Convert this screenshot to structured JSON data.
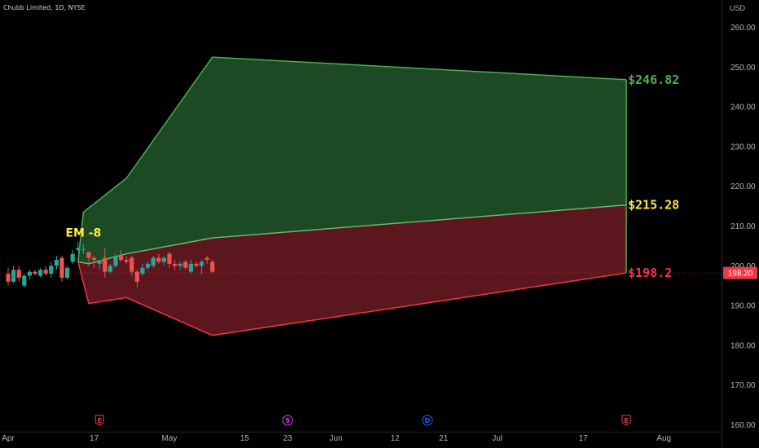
{
  "header": {
    "symbol_title": "Chubb Limited, 1D, NYSE",
    "currency": "USD"
  },
  "colors": {
    "background": "#000000",
    "up": "#26a69a",
    "down": "#ef5350",
    "upper_band_fill": "#1b4a24",
    "upper_band_stroke": "#4caf50",
    "lower_band_fill": "#5c161d",
    "lower_band_stroke": "#f23645",
    "mid_line": "#66bb6a",
    "label_green": "#4caf50",
    "label_yellow": "#ffeb3b",
    "label_red": "#f23645",
    "price_tag": "#f23645",
    "event_earnings": "#f23645",
    "event_split": "#e040fb",
    "event_dividend": "#2962ff"
  },
  "chart_data": {
    "type": "candlestick",
    "y_axis": {
      "min": 160,
      "max": 260,
      "ticks": [
        "160.00",
        "170.00",
        "180.00",
        "190.00",
        "200.00",
        "210.00",
        "220.00",
        "230.00",
        "240.00",
        "250.00",
        "260.00"
      ]
    },
    "x_axis": {
      "ticks": [
        {
          "label": "Apr",
          "day": 0
        },
        {
          "label": "17",
          "day": 16
        },
        {
          "label": "May",
          "day": 30
        },
        {
          "label": "15",
          "day": 44
        },
        {
          "label": "23",
          "day": 52
        },
        {
          "label": "Jun",
          "day": 61
        },
        {
          "label": "12",
          "day": 72
        },
        {
          "label": "21",
          "day": 81
        },
        {
          "label": "Jul",
          "day": 91
        },
        {
          "label": "17",
          "day": 107
        },
        {
          "label": "Aug",
          "day": 122
        }
      ]
    },
    "candles": [
      {
        "day": 0,
        "o": 198.0,
        "h": 199.5,
        "l": 195.0,
        "c": 196.0
      },
      {
        "day": 1,
        "o": 196.0,
        "h": 200.0,
        "l": 195.5,
        "c": 199.0
      },
      {
        "day": 2,
        "o": 199.0,
        "h": 200.0,
        "l": 196.0,
        "c": 197.0
      },
      {
        "day": 3,
        "o": 195.0,
        "h": 198.0,
        "l": 194.5,
        "c": 197.5
      },
      {
        "day": 4,
        "o": 197.5,
        "h": 199.0,
        "l": 196.5,
        "c": 198.5
      },
      {
        "day": 5,
        "o": 198.5,
        "h": 199.0,
        "l": 197.5,
        "c": 198.0
      },
      {
        "day": 6,
        "o": 197.5,
        "h": 199.5,
        "l": 197.0,
        "c": 199.0
      },
      {
        "day": 7,
        "o": 199.0,
        "h": 200.0,
        "l": 197.5,
        "c": 198.0
      },
      {
        "day": 8,
        "o": 198.0,
        "h": 201.0,
        "l": 197.0,
        "c": 200.0
      },
      {
        "day": 9,
        "o": 200.0,
        "h": 202.5,
        "l": 199.0,
        "c": 201.5
      },
      {
        "day": 10,
        "o": 202.0,
        "h": 202.5,
        "l": 196.0,
        "c": 197.0
      },
      {
        "day": 11,
        "o": 197.0,
        "h": 200.0,
        "l": 196.5,
        "c": 199.5
      },
      {
        "day": 12,
        "o": 201.0,
        "h": 204.0,
        "l": 200.5,
        "c": 203.0
      },
      {
        "day": 13,
        "o": 204.0,
        "h": 206.0,
        "l": 203.5,
        "c": 204.5
      },
      {
        "day": 14,
        "o": 204.0,
        "h": 205.5,
        "l": 203.0,
        "c": 204.2
      },
      {
        "day": 15,
        "o": 203.5,
        "h": 203.5,
        "l": 200.0,
        "c": 202.0
      },
      {
        "day": 16,
        "o": 202.0,
        "h": 202.5,
        "l": 199.5,
        "c": 201.5
      },
      {
        "day": 17,
        "o": 200.5,
        "h": 201.5,
        "l": 199.0,
        "c": 201.0
      },
      {
        "day": 18,
        "o": 202.0,
        "h": 204.5,
        "l": 197.0,
        "c": 198.5
      },
      {
        "day": 19,
        "o": 198.5,
        "h": 200.5,
        "l": 198.0,
        "c": 200.0
      },
      {
        "day": 20,
        "o": 200.0,
        "h": 203.0,
        "l": 199.5,
        "c": 202.5
      },
      {
        "day": 21,
        "o": 202.5,
        "h": 204.0,
        "l": 201.0,
        "c": 201.5
      },
      {
        "day": 22,
        "o": 201.5,
        "h": 202.5,
        "l": 200.5,
        "c": 201.0
      },
      {
        "day": 23,
        "o": 202.0,
        "h": 202.5,
        "l": 197.5,
        "c": 198.5
      },
      {
        "day": 24,
        "o": 198.5,
        "h": 199.0,
        "l": 194.5,
        "c": 196.0
      },
      {
        "day": 25,
        "o": 198.0,
        "h": 200.5,
        "l": 197.5,
        "c": 199.5
      },
      {
        "day": 26,
        "o": 199.5,
        "h": 201.0,
        "l": 199.0,
        "c": 200.5
      },
      {
        "day": 27,
        "o": 200.0,
        "h": 202.5,
        "l": 199.5,
        "c": 202.0
      },
      {
        "day": 28,
        "o": 202.0,
        "h": 203.0,
        "l": 200.5,
        "c": 201.0
      },
      {
        "day": 29,
        "o": 201.0,
        "h": 202.5,
        "l": 200.0,
        "c": 202.0
      },
      {
        "day": 30,
        "o": 203.0,
        "h": 203.5,
        "l": 199.5,
        "c": 200.5
      },
      {
        "day": 31,
        "o": 200.5,
        "h": 201.5,
        "l": 199.0,
        "c": 200.0
      },
      {
        "day": 32,
        "o": 200.0,
        "h": 201.0,
        "l": 199.0,
        "c": 200.5
      },
      {
        "day": 33,
        "o": 201.0,
        "h": 201.5,
        "l": 199.0,
        "c": 199.5
      },
      {
        "day": 34,
        "o": 198.5,
        "h": 201.5,
        "l": 198.0,
        "c": 200.5
      },
      {
        "day": 35,
        "o": 200.5,
        "h": 201.0,
        "l": 199.5,
        "c": 200.0
      },
      {
        "day": 36,
        "o": 200.0,
        "h": 201.5,
        "l": 198.0,
        "c": 201.0
      },
      {
        "day": 37,
        "o": 202.0,
        "h": 202.5,
        "l": 200.5,
        "c": 201.5
      },
      {
        "day": 38,
        "o": 201.0,
        "h": 201.5,
        "l": 198.0,
        "c": 198.5
      }
    ],
    "bands": {
      "start": {
        "day": 13,
        "price": 201.0
      },
      "upper": [
        {
          "day": 14,
          "price": 213.5
        },
        {
          "day": 22,
          "price": 222.0
        },
        {
          "day": 38,
          "price": 252.5
        },
        {
          "day": 115,
          "price": 246.82
        }
      ],
      "mid": [
        {
          "day": 15,
          "price": 200.5
        },
        {
          "day": 22,
          "price": 203.0
        },
        {
          "day": 38,
          "price": 207.0
        },
        {
          "day": 115,
          "price": 215.28
        }
      ],
      "lower": [
        {
          "day": 15,
          "price": 190.5
        },
        {
          "day": 22,
          "price": 192.0
        },
        {
          "day": 38,
          "price": 182.5
        },
        {
          "day": 115,
          "price": 198.2
        }
      ]
    },
    "current_price": 198.2,
    "current_price_label": "198.20",
    "labels": {
      "upper": "$246.82",
      "mid": "$215.28",
      "lower": "$198.2",
      "em": "EM -8"
    },
    "events": [
      {
        "day": 17,
        "letter": "E",
        "kind": "earnings"
      },
      {
        "day": 52,
        "letter": "S",
        "kind": "split"
      },
      {
        "day": 78,
        "letter": "D",
        "kind": "dividend"
      },
      {
        "day": 115,
        "letter": "E",
        "kind": "earnings"
      }
    ]
  }
}
